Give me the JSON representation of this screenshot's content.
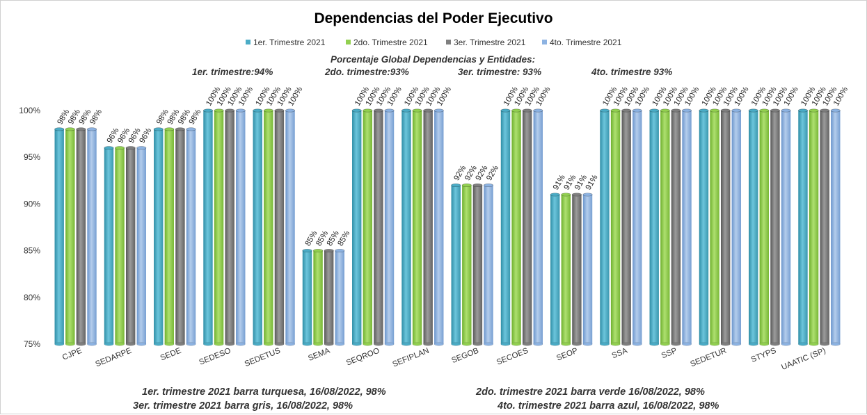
{
  "chart_data": {
    "type": "bar",
    "title": "Dependencias del Poder Ejecutivo",
    "categories": [
      "CJPE",
      "SEDARPE",
      "SEDE",
      "SEDESO",
      "SEDETUS",
      "SEMA",
      "SEQROO",
      "SEFIPLAN",
      "SEGOB",
      "SECOES",
      "SEOP",
      "SSA",
      "SSP",
      "SEDETUR",
      "STYPS",
      "UAATIC (SP)"
    ],
    "series": [
      {
        "name": "1er. Trimestre 2021",
        "color": "#4bacc6",
        "values": [
          98,
          96,
          98,
          100,
          100,
          85,
          100,
          100,
          92,
          100,
          91,
          100,
          100,
          100,
          100,
          100
        ]
      },
      {
        "name": "2do. Trimestre 2021",
        "color": "#92d050",
        "values": [
          98,
          96,
          98,
          100,
          100,
          85,
          100,
          100,
          92,
          100,
          91,
          100,
          100,
          100,
          100,
          100
        ]
      },
      {
        "name": "3er. Trimestre 2021",
        "color": "#7f7f7f",
        "values": [
          98,
          96,
          98,
          100,
          100,
          85,
          100,
          100,
          92,
          100,
          91,
          100,
          100,
          100,
          100,
          100
        ]
      },
      {
        "name": "4to. Trimestre 2021",
        "color": "#8db3e2",
        "values": [
          98,
          96,
          98,
          100,
          100,
          85,
          100,
          100,
          92,
          100,
          91,
          100,
          100,
          100,
          100,
          100
        ]
      }
    ],
    "value_labels": [
      [
        "98%",
        "98%",
        "98%",
        "98%"
      ],
      [
        "96%",
        "96%",
        "96%",
        "96%"
      ],
      [
        "98%",
        "98%",
        "98%",
        "98%"
      ],
      [
        "100%",
        "100%",
        "100%",
        "100%"
      ],
      [
        "100%",
        "100%",
        "100%",
        "100%"
      ],
      [
        "85%",
        "85%",
        "85%",
        "85%"
      ],
      [
        "100%",
        "100%",
        "100%",
        "100%"
      ],
      [
        "100%",
        "100%",
        "100%",
        "100%"
      ],
      [
        "92%",
        "92%",
        "92%",
        "92%"
      ],
      [
        "100%",
        "100%",
        "100%",
        "100%"
      ],
      [
        "91%",
        "91%",
        "91%",
        "91%"
      ],
      [
        "100%",
        "100%",
        "100%",
        "100%"
      ],
      [
        "100%",
        "100%",
        "100%",
        "100%"
      ],
      [
        "100%",
        "100%",
        "100%",
        "100%"
      ],
      [
        "100%",
        "100%",
        "100%",
        "100%"
      ],
      [
        "100%",
        "100%",
        "100%",
        "100%"
      ]
    ],
    "ylim": [
      75,
      100
    ],
    "yticks": [
      75,
      80,
      85,
      90,
      95,
      100
    ],
    "ytick_labels": [
      "75%",
      "80%",
      "85%",
      "90%",
      "95%",
      "100%"
    ],
    "xlabel": "",
    "ylabel": "",
    "legend_position": "top",
    "grid": false,
    "annotations": {
      "global_heading": "Porcentaje Global  Dependencias y Entidades:",
      "q1": "1er. trimestre:94%",
      "q2": "2do. trimestre:93%",
      "q3": "3er. trimestre: 93%",
      "q4": "4to. trimestre 93%"
    },
    "footnotes": [
      "1er. trimestre  2021 barra turquesa,  16/08/2022, 98%",
      "2do. trimestre  2021 barra verde  16/08/2022, 98%",
      "3er. trimestre 2021 barra gris, 16/08/2022, 98%",
      "4to. trimestre 2021 barra azul, 16/08/2022, 98%"
    ]
  }
}
